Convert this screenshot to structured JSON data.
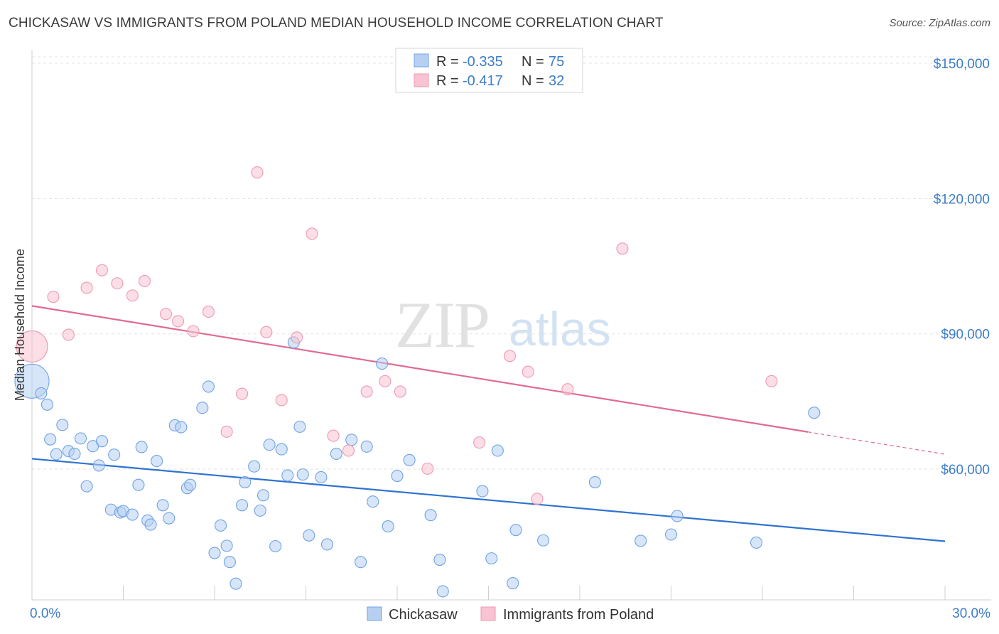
{
  "chart_data": {
    "type": "scatter",
    "title": "CHICKASAW VS IMMIGRANTS FROM POLAND MEDIAN HOUSEHOLD INCOME CORRELATION CHART",
    "source": "Source: ZipAtlas.com",
    "xlabel": "",
    "ylabel": "Median Household Income",
    "xlim": [
      0,
      30
    ],
    "ylim": [
      31000,
      153000
    ],
    "x_tick_labels": [
      "0.0%",
      "30.0%"
    ],
    "y_ticks": [
      60000,
      90000,
      120000,
      150000
    ],
    "y_tick_labels": [
      "$60,000",
      "$90,000",
      "$120,000",
      "$150,000"
    ],
    "watermark": {
      "zip": "ZIP",
      "atlas": "atlas"
    },
    "legend_stats": [
      {
        "r_label": "R =",
        "r_value": "-0.335",
        "n_label": "N =",
        "n_value": "75"
      },
      {
        "r_label": "R =",
        "r_value": "-0.417",
        "n_label": "N =",
        "n_value": "32"
      }
    ],
    "series": [
      {
        "name": "Chickasaw",
        "color": "#6fa3e4",
        "fill": "#b7d0f2",
        "line_color": "#2f72d0",
        "trend": {
          "x0": 0,
          "y0": 62300,
          "x1": 30,
          "y1": 44000,
          "dashed_from": null
        },
        "points": [
          [
            0.0,
            79500,
            24
          ],
          [
            0.3,
            76800,
            8
          ],
          [
            0.5,
            74300,
            8
          ],
          [
            0.6,
            66600,
            8
          ],
          [
            0.8,
            63300,
            8
          ],
          [
            1.0,
            69800,
            8
          ],
          [
            1.2,
            64000,
            8
          ],
          [
            1.4,
            63400,
            8
          ],
          [
            1.6,
            66800,
            8
          ],
          [
            1.8,
            56200,
            8
          ],
          [
            2.0,
            65100,
            8
          ],
          [
            2.2,
            60800,
            8
          ],
          [
            2.3,
            66200,
            8
          ],
          [
            2.6,
            51000,
            8
          ],
          [
            2.7,
            63200,
            8
          ],
          [
            2.9,
            50400,
            8
          ],
          [
            3.0,
            50700,
            8
          ],
          [
            3.3,
            49900,
            8
          ],
          [
            3.5,
            56500,
            8
          ],
          [
            3.6,
            64900,
            8
          ],
          [
            3.8,
            48600,
            8
          ],
          [
            3.9,
            47700,
            8
          ],
          [
            4.1,
            61800,
            8
          ],
          [
            4.3,
            52000,
            8
          ],
          [
            4.5,
            49100,
            8
          ],
          [
            4.7,
            69700,
            8
          ],
          [
            4.9,
            69300,
            8
          ],
          [
            5.1,
            55800,
            8
          ],
          [
            5.2,
            56500,
            8
          ],
          [
            5.6,
            73600,
            8
          ],
          [
            5.8,
            78300,
            8
          ],
          [
            6.0,
            41400,
            8
          ],
          [
            6.2,
            47500,
            8
          ],
          [
            6.4,
            43000,
            8
          ],
          [
            6.5,
            39400,
            8
          ],
          [
            6.7,
            34600,
            8
          ],
          [
            6.9,
            52000,
            8
          ],
          [
            7.0,
            57100,
            8
          ],
          [
            7.3,
            60600,
            8
          ],
          [
            7.5,
            50800,
            8
          ],
          [
            7.6,
            54200,
            8
          ],
          [
            7.8,
            65400,
            8
          ],
          [
            8.0,
            42900,
            8
          ],
          [
            8.2,
            64400,
            8
          ],
          [
            8.4,
            58600,
            8
          ],
          [
            8.6,
            88100,
            8
          ],
          [
            8.8,
            69400,
            8
          ],
          [
            8.9,
            58800,
            8
          ],
          [
            9.1,
            45300,
            8
          ],
          [
            9.5,
            58200,
            8
          ],
          [
            9.7,
            43300,
            8
          ],
          [
            10.0,
            63400,
            8
          ],
          [
            10.5,
            66500,
            8
          ],
          [
            10.8,
            39400,
            8
          ],
          [
            11.0,
            65000,
            8
          ],
          [
            11.2,
            52800,
            8
          ],
          [
            11.5,
            83400,
            8
          ],
          [
            11.7,
            47300,
            8
          ],
          [
            12.0,
            58500,
            8
          ],
          [
            12.4,
            62000,
            8
          ],
          [
            13.1,
            49800,
            8
          ],
          [
            13.4,
            39900,
            8
          ],
          [
            13.5,
            32900,
            8
          ],
          [
            14.8,
            55100,
            8
          ],
          [
            15.1,
            40200,
            8
          ],
          [
            15.3,
            64100,
            8
          ],
          [
            15.9,
            46500,
            8
          ],
          [
            15.8,
            34700,
            8
          ],
          [
            16.8,
            44200,
            8
          ],
          [
            18.5,
            57100,
            8
          ],
          [
            20.0,
            44100,
            8
          ],
          [
            21.0,
            45500,
            8
          ],
          [
            21.2,
            49600,
            8
          ],
          [
            23.8,
            43700,
            8
          ],
          [
            25.7,
            72500,
            8
          ]
        ]
      },
      {
        "name": "Immigrants from Poland",
        "color": "#ee9ab4",
        "fill": "#f8c3d2",
        "line_color": "#e06a92",
        "trend": {
          "x0": 0,
          "y0": 96200,
          "x1": 30,
          "y1": 63300,
          "dashed_from": 25.5
        },
        "points": [
          [
            0.0,
            87200,
            22
          ],
          [
            0.7,
            98200,
            8
          ],
          [
            1.2,
            89800,
            8
          ],
          [
            1.8,
            100200,
            8
          ],
          [
            2.3,
            104100,
            8
          ],
          [
            2.8,
            101200,
            8
          ],
          [
            3.3,
            98500,
            8
          ],
          [
            3.7,
            101700,
            8
          ],
          [
            4.4,
            94400,
            8
          ],
          [
            4.8,
            92800,
            8
          ],
          [
            5.3,
            90600,
            8
          ],
          [
            5.8,
            94900,
            8
          ],
          [
            6.4,
            68300,
            8
          ],
          [
            6.9,
            76700,
            8
          ],
          [
            7.4,
            125800,
            8
          ],
          [
            7.7,
            90400,
            8
          ],
          [
            8.2,
            75300,
            8
          ],
          [
            8.7,
            89200,
            8
          ],
          [
            9.2,
            112200,
            8
          ],
          [
            9.9,
            67400,
            8
          ],
          [
            10.4,
            64100,
            8
          ],
          [
            11.0,
            77200,
            8
          ],
          [
            11.6,
            79500,
            8
          ],
          [
            12.1,
            77200,
            8
          ],
          [
            13.0,
            60100,
            8
          ],
          [
            14.7,
            65900,
            8
          ],
          [
            15.7,
            85100,
            8
          ],
          [
            16.3,
            81600,
            8
          ],
          [
            16.6,
            53400,
            8
          ],
          [
            17.6,
            77700,
            8
          ],
          [
            19.4,
            108900,
            8
          ],
          [
            24.3,
            79500,
            8
          ]
        ]
      }
    ]
  }
}
